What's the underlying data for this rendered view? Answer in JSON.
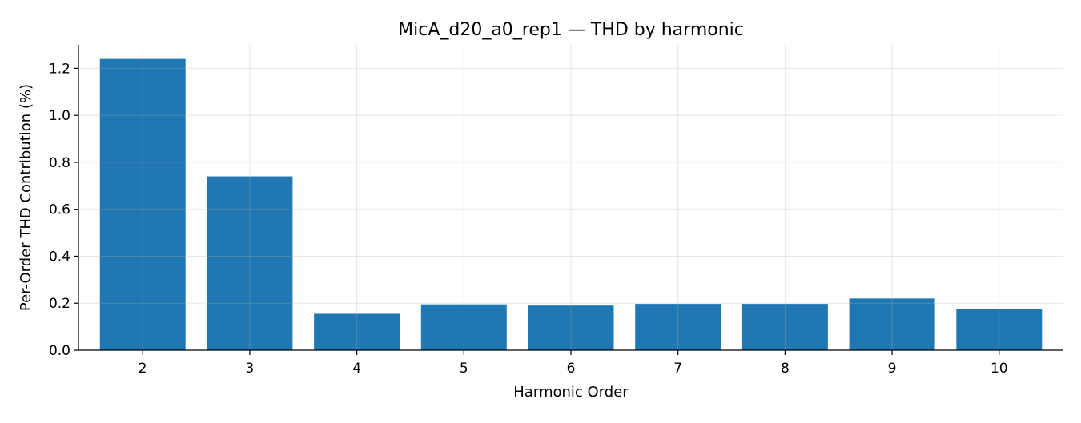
{
  "chart_data": {
    "type": "bar",
    "title": "MicA_d20_a0_rep1 — THD by harmonic",
    "xlabel": "Harmonic Order",
    "ylabel": "Per-Order THD Contribution (%)",
    "categories": [
      "2",
      "3",
      "4",
      "5",
      "6",
      "7",
      "8",
      "9",
      "10"
    ],
    "values": [
      1.24,
      0.74,
      0.155,
      0.195,
      0.19,
      0.197,
      0.197,
      0.22,
      0.177
    ],
    "ylim": [
      0,
      1.3
    ],
    "yticks": [
      "0.0",
      "0.2",
      "0.4",
      "0.6",
      "0.8",
      "1.0",
      "1.2"
    ],
    "bar_color": "#1f77b4",
    "grid": true,
    "legend": "none"
  }
}
